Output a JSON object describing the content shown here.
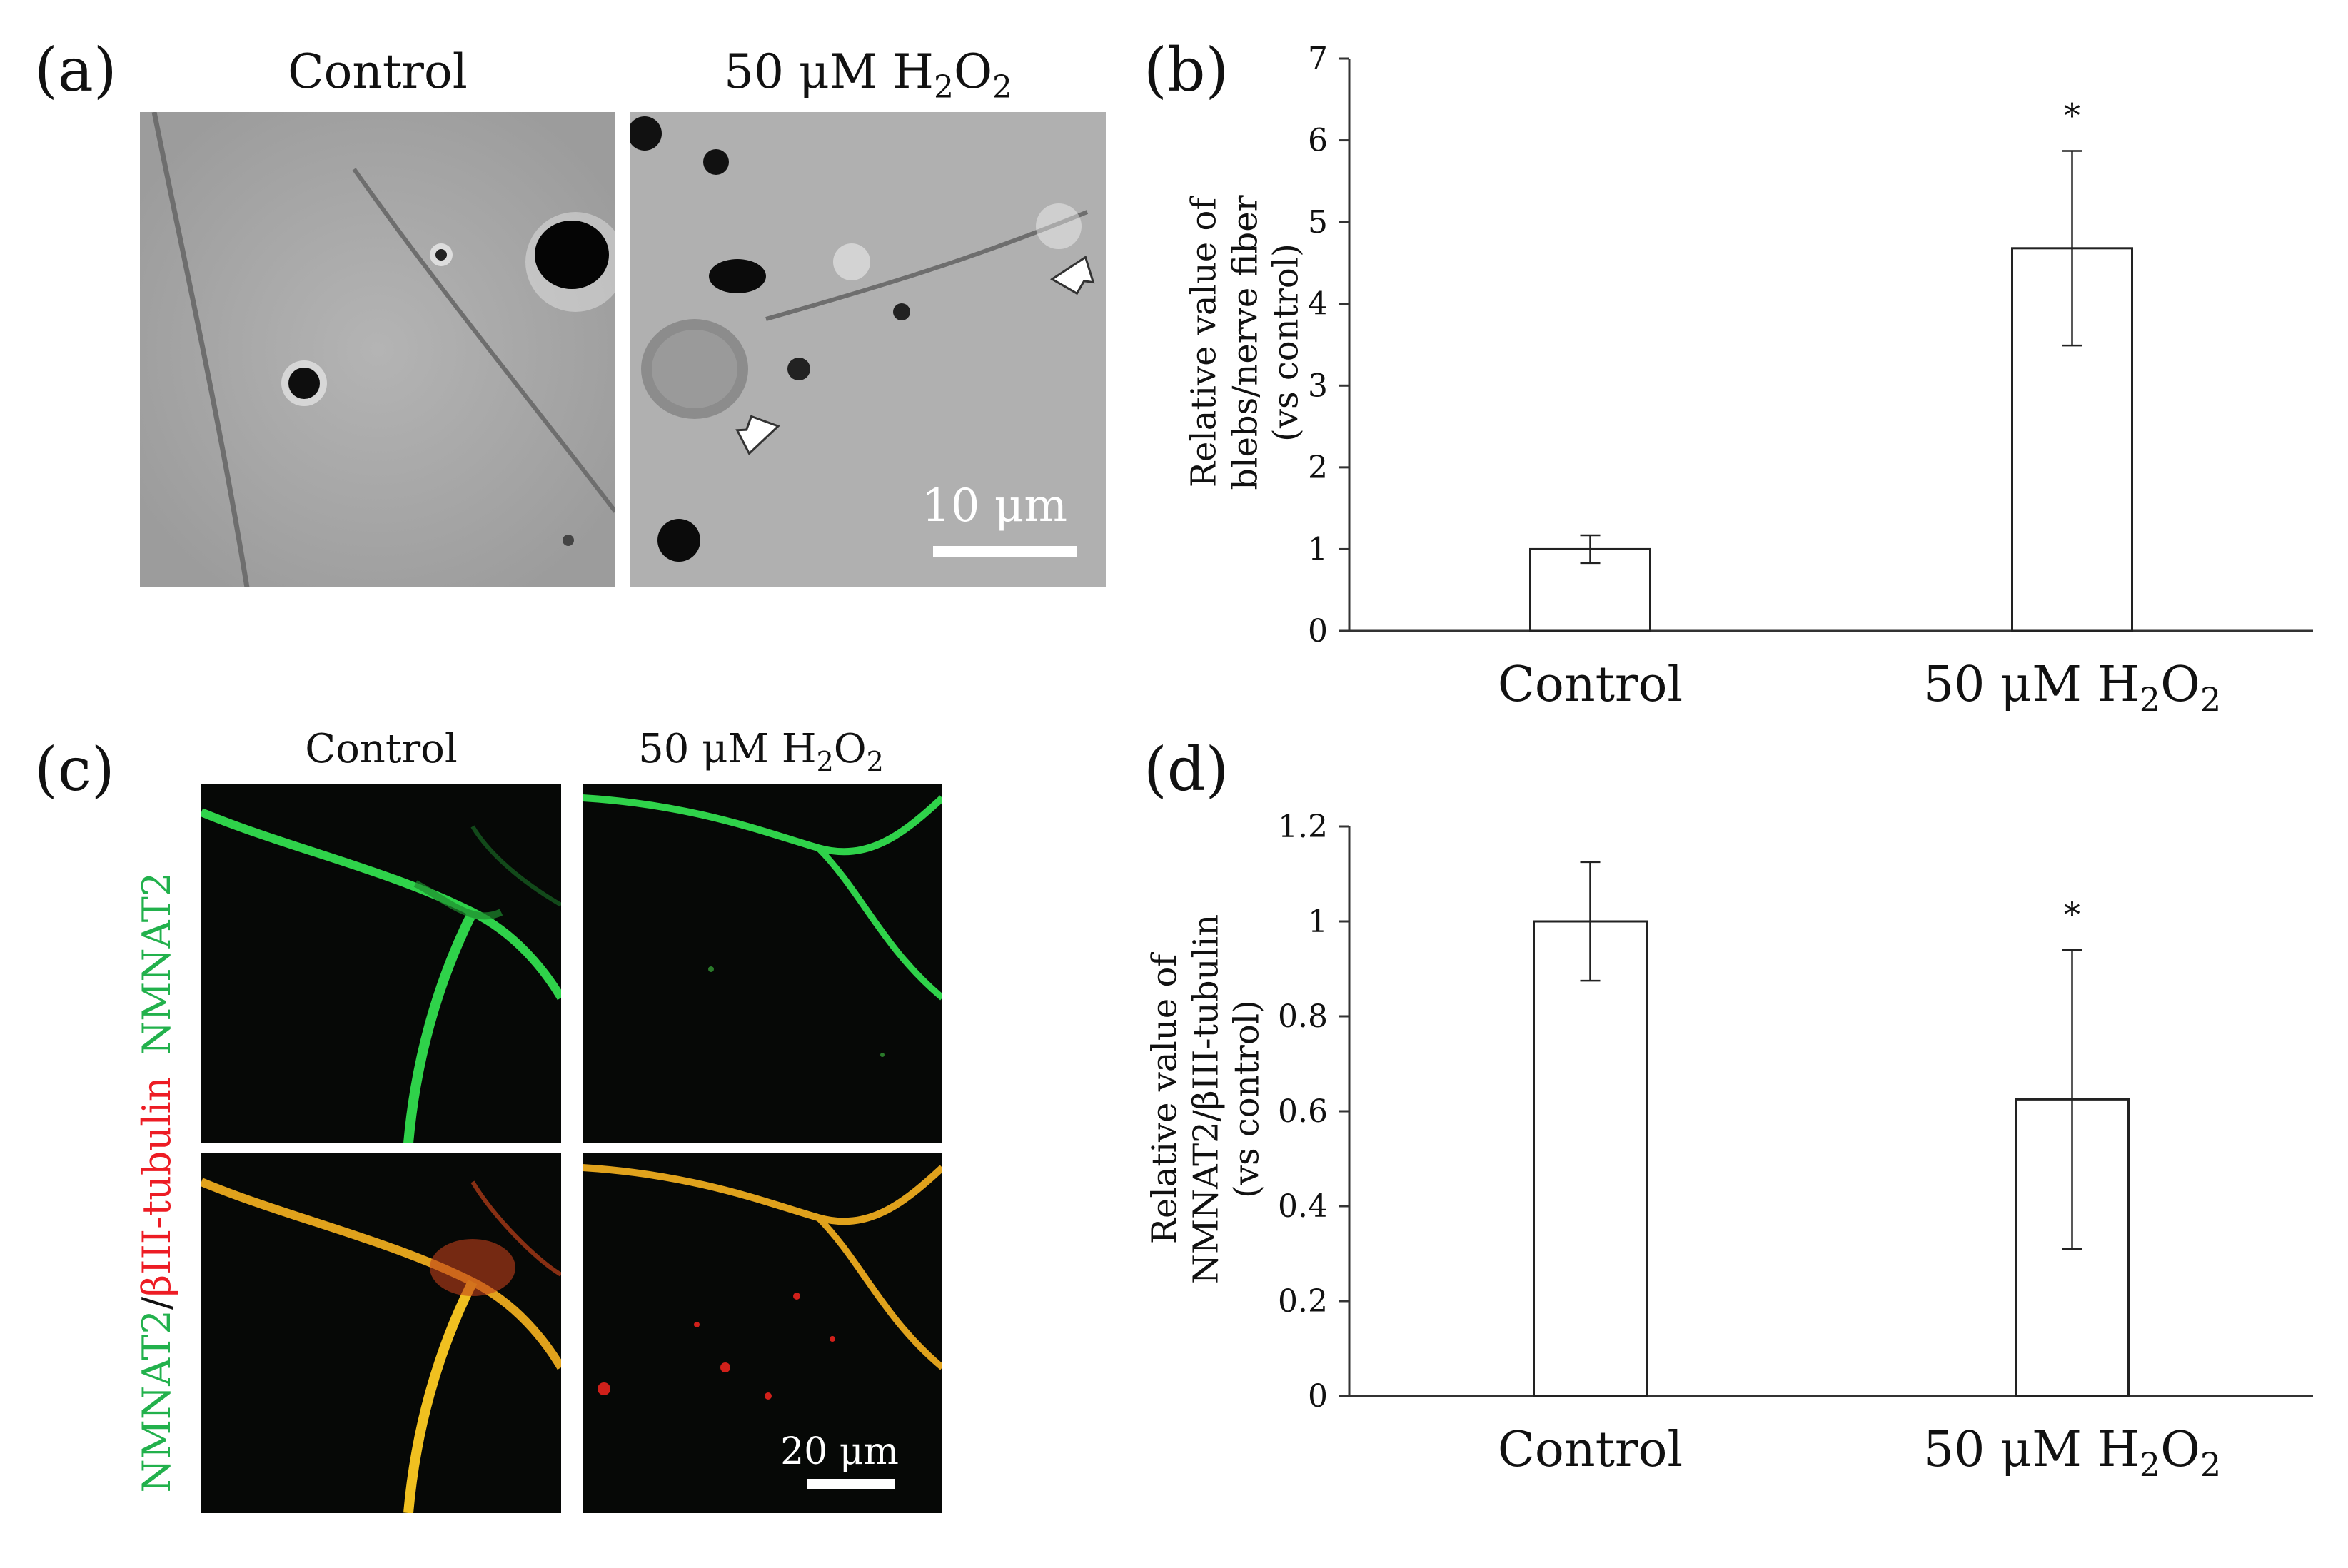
{
  "panel_a": {
    "letter": "(a)",
    "left_title": "Control",
    "right_title_prefix": "50 μM H",
    "right_title_sub1": "2",
    "right_title_mid": "O",
    "right_title_sub2": "2",
    "scale_label": "10 μm"
  },
  "panel_b": {
    "letter": "(b)"
  },
  "panel_c": {
    "letter": "(c)",
    "left_title": "Control",
    "right_title_prefix": "50 μM H",
    "right_title_sub1": "2",
    "right_title_mid": "O",
    "right_title_sub2": "2",
    "row1_label": "NMNAT2",
    "row2_label_green": "NMNAT2",
    "row2_label_sep": "/",
    "row2_label_red": "βIII-tubulin",
    "scale_label": "20 μm"
  },
  "panel_d": {
    "letter": "(d)"
  },
  "chart_data": [
    {
      "type": "bar",
      "panel": "(b)",
      "categories": [
        "Control",
        "50 μM H2O2"
      ],
      "values": [
        1.0,
        4.68
      ],
      "error": [
        0.17,
        1.19
      ],
      "significance": [
        "",
        "*"
      ],
      "ylabel_lines": [
        "Relative value of",
        "blebs/nerve fiber",
        "(vs control)"
      ],
      "ylim": [
        0,
        7
      ],
      "yticks": [
        0,
        1,
        2,
        3,
        4,
        5,
        6,
        7
      ],
      "ytick_labels": [
        "0",
        "1",
        "2",
        "3",
        "4",
        "5",
        "6",
        "7"
      ],
      "grid": false
    },
    {
      "type": "bar",
      "panel": "(d)",
      "categories": [
        "Control",
        "50 μM H2O2"
      ],
      "values": [
        1.0,
        0.625
      ],
      "error": [
        0.125,
        0.315
      ],
      "significance": [
        "",
        "*"
      ],
      "ylabel_lines": [
        "Relative value of",
        "NMNAT2/βIII-tubulin",
        "(vs  control)"
      ],
      "ylim": [
        0,
        1.2
      ],
      "yticks": [
        0,
        0.2,
        0.4,
        0.6,
        0.8,
        1.0,
        1.2
      ],
      "ytick_labels": [
        "0",
        "0.2",
        "0.4",
        "0.6",
        "0.8",
        "1",
        "1.2"
      ],
      "grid": false
    }
  ]
}
